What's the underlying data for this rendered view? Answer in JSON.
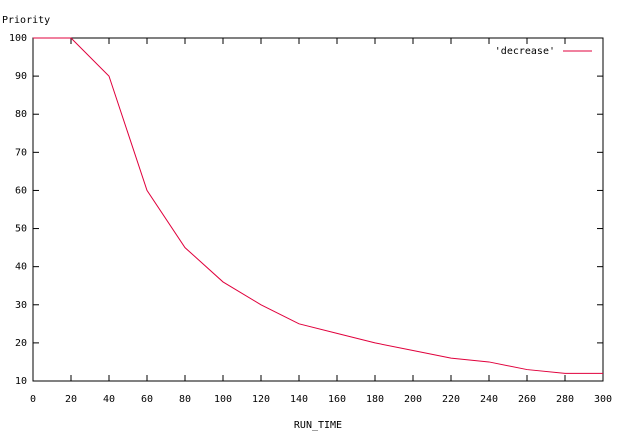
{
  "chart_data": {
    "type": "line",
    "y_label": "Priority",
    "x_label": "RUN_TIME",
    "x": [
      0,
      20,
      40,
      60,
      80,
      100,
      120,
      140,
      160,
      180,
      200,
      220,
      240,
      260,
      280,
      300
    ],
    "series": [
      {
        "name": "'decrease'",
        "color": "#e0003c",
        "values": [
          100,
          100,
          90,
          60,
          45,
          36,
          30,
          25,
          22.5,
          20,
          18,
          16,
          15,
          13,
          12,
          12
        ]
      }
    ],
    "xlim": [
      0,
      300
    ],
    "ylim": [
      10,
      100
    ],
    "xticks": [
      0,
      20,
      40,
      60,
      80,
      100,
      120,
      140,
      160,
      180,
      200,
      220,
      240,
      260,
      280,
      300
    ],
    "yticks": [
      10,
      20,
      30,
      40,
      50,
      60,
      70,
      80,
      90,
      100
    ],
    "legend": "top-right"
  }
}
